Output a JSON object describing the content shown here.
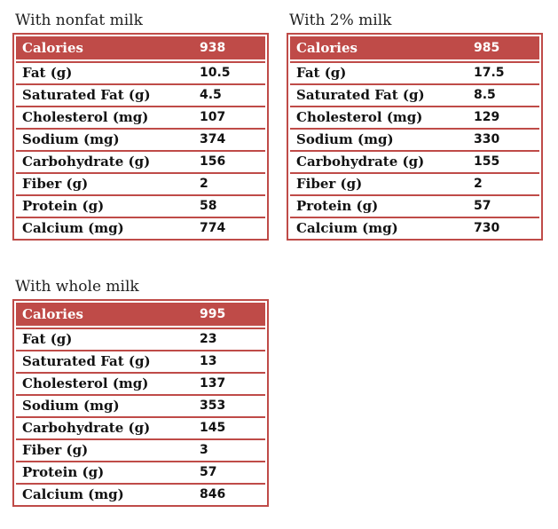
{
  "colors": {
    "accent": "#bf4b48",
    "header_text": "#ffffff",
    "body_text": "#121212",
    "title_text": "#1f1f1f"
  },
  "chart_data": [
    {
      "type": "table",
      "title": "With nonfat milk",
      "header": {
        "label": "Calories",
        "value": "938"
      },
      "rows": [
        {
          "label": "Fat (g)",
          "value": "10.5"
        },
        {
          "label": "Saturated Fat (g)",
          "value": "4.5"
        },
        {
          "label": "Cholesterol (mg)",
          "value": "107"
        },
        {
          "label": "Sodium (mg)",
          "value": "374"
        },
        {
          "label": "Carbohydrate (g)",
          "value": "156"
        },
        {
          "label": "Fiber (g)",
          "value": "2"
        },
        {
          "label": "Protein (g)",
          "value": "58"
        },
        {
          "label": "Calcium (mg)",
          "value": "774"
        }
      ]
    },
    {
      "type": "table",
      "title": "With 2% milk",
      "header": {
        "label": "Calories",
        "value": "985"
      },
      "rows": [
        {
          "label": "Fat (g)",
          "value": "17.5"
        },
        {
          "label": "Saturated Fat (g)",
          "value": "8.5"
        },
        {
          "label": "Cholesterol (mg)",
          "value": "129"
        },
        {
          "label": "Sodium (mg)",
          "value": "330"
        },
        {
          "label": "Carbohydrate (g)",
          "value": "155"
        },
        {
          "label": "Fiber (g)",
          "value": "2"
        },
        {
          "label": "Protein (g)",
          "value": "57"
        },
        {
          "label": "Calcium (mg)",
          "value": "730"
        }
      ]
    },
    {
      "type": "table",
      "title": "With whole milk",
      "header": {
        "label": "Calories",
        "value": "995"
      },
      "rows": [
        {
          "label": "Fat (g)",
          "value": "23"
        },
        {
          "label": "Saturated Fat (g)",
          "value": "13"
        },
        {
          "label": "Cholesterol (mg)",
          "value": "137"
        },
        {
          "label": "Sodium (mg)",
          "value": "353"
        },
        {
          "label": "Carbohydrate (g)",
          "value": "145"
        },
        {
          "label": "Fiber (g)",
          "value": "3"
        },
        {
          "label": "Protein (g)",
          "value": "57"
        },
        {
          "label": "Calcium (mg)",
          "value": "846"
        }
      ]
    }
  ]
}
